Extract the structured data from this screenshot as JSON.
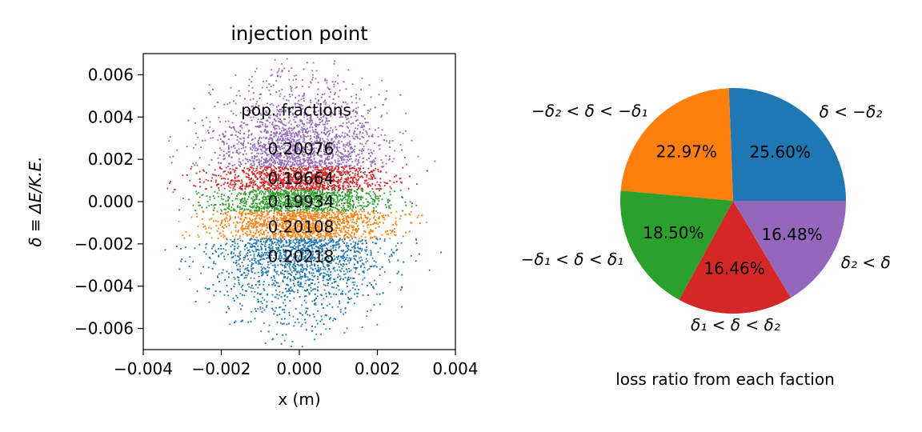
{
  "chart_data": [
    {
      "type": "scatter",
      "title": "injection point",
      "xlabel": "x (m)",
      "ylabel": "δ ≡ ΔE/K.E.",
      "xlim": [
        -0.004,
        0.004
      ],
      "ylim": [
        -0.007,
        0.007
      ],
      "xticks": [
        -0.004,
        -0.002,
        0.0,
        0.002,
        0.004
      ],
      "xtick_labels": [
        "−0.004",
        "−0.002",
        "0.000",
        "0.002",
        "0.004"
      ],
      "yticks": [
        -0.006,
        -0.004,
        -0.002,
        0.0,
        0.002,
        0.004,
        0.006
      ],
      "ytick_labels": [
        "−0.006",
        "−0.004",
        "−0.002",
        "0.000",
        "0.002",
        "0.004",
        "0.006"
      ],
      "grid": false,
      "distribution": {
        "x_sigma": 0.0011,
        "delta_sigma": 0.0024,
        "x_max": 0.0039,
        "delta_max": 0.0069
      },
      "bands": [
        {
          "name": "δ < −δ₂",
          "color": "#1f77b4",
          "delta_min": -0.007,
          "delta_max": -0.00175,
          "fraction_label": "0.20218",
          "label_delta": -0.0026
        },
        {
          "name": "−δ₂ < δ < −δ₁",
          "color": "#ff7f0e",
          "delta_min": -0.00175,
          "delta_max": -0.00045,
          "fraction_label": "0.20108",
          "label_delta": -0.0012
        },
        {
          "name": "−δ₁ < δ < δ₁",
          "color": "#2ca02c",
          "delta_min": -0.00045,
          "delta_max": 0.00055,
          "fraction_label": "0.19934",
          "label_delta": 0.0
        },
        {
          "name": "δ₁ < δ < δ₂",
          "color": "#d62728",
          "delta_min": 0.00055,
          "delta_max": 0.00165,
          "fraction_label": "0.19664",
          "label_delta": 0.0011
        },
        {
          "name": "δ₂ < δ",
          "color": "#9467bd",
          "delta_min": 0.00165,
          "delta_max": 0.007,
          "fraction_label": "0.20076",
          "label_delta": 0.0025
        }
      ],
      "annotation": {
        "text": "pop. fractions",
        "x": 0.0,
        "y": 0.0043
      }
    },
    {
      "type": "pie",
      "xlabel": "loss ratio from each faction",
      "slices": [
        {
          "label": "δ < −δ₂",
          "value": 25.6,
          "pct_label": "25.60%",
          "color": "#1f77b4"
        },
        {
          "label": "−δ₂ < δ < −δ₁",
          "value": 22.97,
          "pct_label": "22.97%",
          "color": "#ff7f0e"
        },
        {
          "label": "−δ₁ < δ < δ₁",
          "value": 18.5,
          "pct_label": "18.50%",
          "color": "#2ca02c"
        },
        {
          "label": "δ₁ < δ < δ₂",
          "value": 16.46,
          "pct_label": "16.46%",
          "color": "#d62728"
        },
        {
          "label": "δ₂ < δ",
          "value": 16.48,
          "pct_label": "16.48%",
          "color": "#9467bd"
        }
      ],
      "start_angle": 0,
      "direction": "counterclockwise"
    }
  ]
}
